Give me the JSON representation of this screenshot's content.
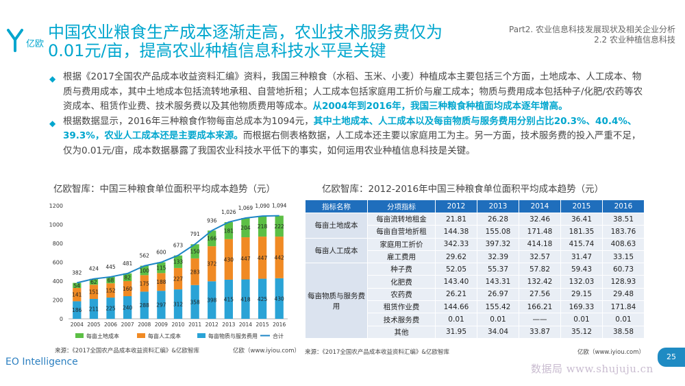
{
  "header": {
    "title_line1": "中国农业粮食生产成本逐渐走高，农业技术服务费仅为",
    "title_line2": "0.01元/亩，提高农业种植信息科技水平是关键",
    "part": "Part2. 农业信息科技发展现状及相关企业分析",
    "section": "2.2 农业种植信息科技"
  },
  "bullets": [
    {
      "text": "根据《2017全国农产品成本收益资料汇编》资料，我国三种粮食（水稻、玉米、小麦）种植成本主要包括三个方面，土地成本、人工成本、物质与费用成本，其中土地成本包括流转地承租、自营地折租；人工成本包括家庭用工折价与雇工成本；物质与费用成本包括种子/化肥/农药等农资成本、租赁作业费、技术服务费以及其他物质费用等成本。",
      "highlight": "从2004年到2016年，我国三种粮食种植面均成本逐年增高。"
    },
    {
      "text": "根据数据显示，2016年三种粮食作物每亩总成本为1094元，",
      "highlight": "其中土地成本、人工成本以及每亩物质与服务费用分别占比20.3%、40.4%、39.3%，农业人工成本还是主要成本来源。",
      "text2": "而根据右侧表格数据，人工成本还主要以家庭用工为主。另一方面，技术服务费的投入严重不足，仅为0.01元/亩，成本数据暴露了我国农业科技水平低下的事实，如何运用农业种植信息科技是关键。"
    }
  ],
  "chart_title": "亿欧智库：中国三种粮食单位面积平均成本趋势（元）",
  "table_title": "亿欧智库：2012-2016年中国三种粮食单位面积平均成本趋势（元）",
  "chart_data": {
    "type": "bar",
    "stacked": true,
    "categories": [
      "2004",
      "2005",
      "2006",
      "2007",
      "2008",
      "2009",
      "2010",
      "2011",
      "2012",
      "2013",
      "2014",
      "2015",
      "2016"
    ],
    "series": [
      {
        "name": "每亩物质与服务费用",
        "color": "#2aa3d6",
        "values": [
          186,
          211,
          225,
          240,
          288,
          297,
          312,
          358,
          398,
          415,
          418,
          425,
          430
        ]
      },
      {
        "name": "每亩人工成本",
        "color": "#f08a24",
        "values": [
          141,
          151,
          152,
          160,
          175,
          188,
          227,
          283,
          372,
          430,
          447,
          447,
          442
        ]
      },
      {
        "name": "每亩土地成本",
        "color": "#5cbf45",
        "values": [
          54,
          62,
          68,
          82,
          100,
          115,
          133,
          150,
          166,
          181,
          204,
          218,
          222
        ]
      }
    ],
    "total": {
      "name": "合计",
      "color": "#1d86c6",
      "values": [
        382,
        424,
        445,
        481,
        562,
        600,
        673,
        791,
        936,
        1026,
        1069,
        1090,
        1094
      ]
    },
    "total_labels": [
      "382",
      "424",
      "445",
      "481",
      "562",
      "600",
      "673",
      "791",
      "936",
      "1,026",
      "1,069",
      "1,090",
      "1,094"
    ],
    "yticks": [
      0,
      200,
      400,
      600,
      800,
      1000,
      1200
    ],
    "ylim": [
      0,
      1200
    ],
    "legend_order": [
      "每亩土地成本",
      "每亩人工成本",
      "每亩物质与服务费用",
      "合计"
    ],
    "legend_position": "bottom",
    "grid": false
  },
  "table": {
    "headers": [
      "指标名称",
      "分项指标",
      "2012",
      "2013",
      "2014",
      "2015",
      "2016"
    ],
    "groups": [
      {
        "name": "每亩土地成本",
        "rows": [
          {
            "item": "每亩流转地租金",
            "values": [
              "21.81",
              "26.28",
              "32.46",
              "36.41",
              "38.51"
            ]
          },
          {
            "item": "每亩自营地折租",
            "values": [
              "144.38",
              "155.08",
              "171.48",
              "181.35",
              "183.76"
            ]
          }
        ]
      },
      {
        "name": "每亩人工成本",
        "rows": [
          {
            "item": "家庭用工折价",
            "values": [
              "342.33",
              "397.32",
              "414.18",
              "415.74",
              "408.63"
            ]
          },
          {
            "item": "雇工费用",
            "values": [
              "29.62",
              "32.39",
              "32.57",
              "31.47",
              "33.15"
            ]
          }
        ]
      },
      {
        "name": "每亩物质与服务费用",
        "rows": [
          {
            "item": "种子费",
            "values": [
              "52.05",
              "55.37",
              "57.82",
              "59.43",
              "60.73"
            ]
          },
          {
            "item": "化肥费",
            "values": [
              "143.40",
              "143.31",
              "132.42",
              "132.03",
              "128.93"
            ]
          },
          {
            "item": "农药费",
            "values": [
              "26.21",
              "26.97",
              "27.56",
              "29.15",
              "29.48"
            ]
          },
          {
            "item": "租赁作业费",
            "values": [
              "144.66",
              "155.42",
              "166.21",
              "169.33",
              "171.84"
            ]
          },
          {
            "item": "技术服务费",
            "values": [
              "0.01",
              "0.01",
              "——",
              "0.01",
              "0.01"
            ]
          },
          {
            "item": "其他",
            "values": [
              "31.95",
              "34.04",
              "33.87",
              "35.12",
              "38.58"
            ]
          }
        ]
      }
    ]
  },
  "footer": {
    "source_left": "来源：《2017全国农产品成本收益资料汇编》&亿欧智库",
    "site_left": "亿欧（www.iyiou.com）",
    "source_right": "来源：《2017全国农产品成本收益资料汇编》&亿欧智库",
    "site_right": "亿欧（www.iyiou.com）",
    "brand": "EO Intelligence",
    "page": "25",
    "watermark": "数据局 www.shujuju.cn"
  },
  "logo_text": "亿欧",
  "colors": {
    "accent": "#00a6ce",
    "table_header": "#1f6ebc",
    "page_badge": "#1f8bc3"
  }
}
